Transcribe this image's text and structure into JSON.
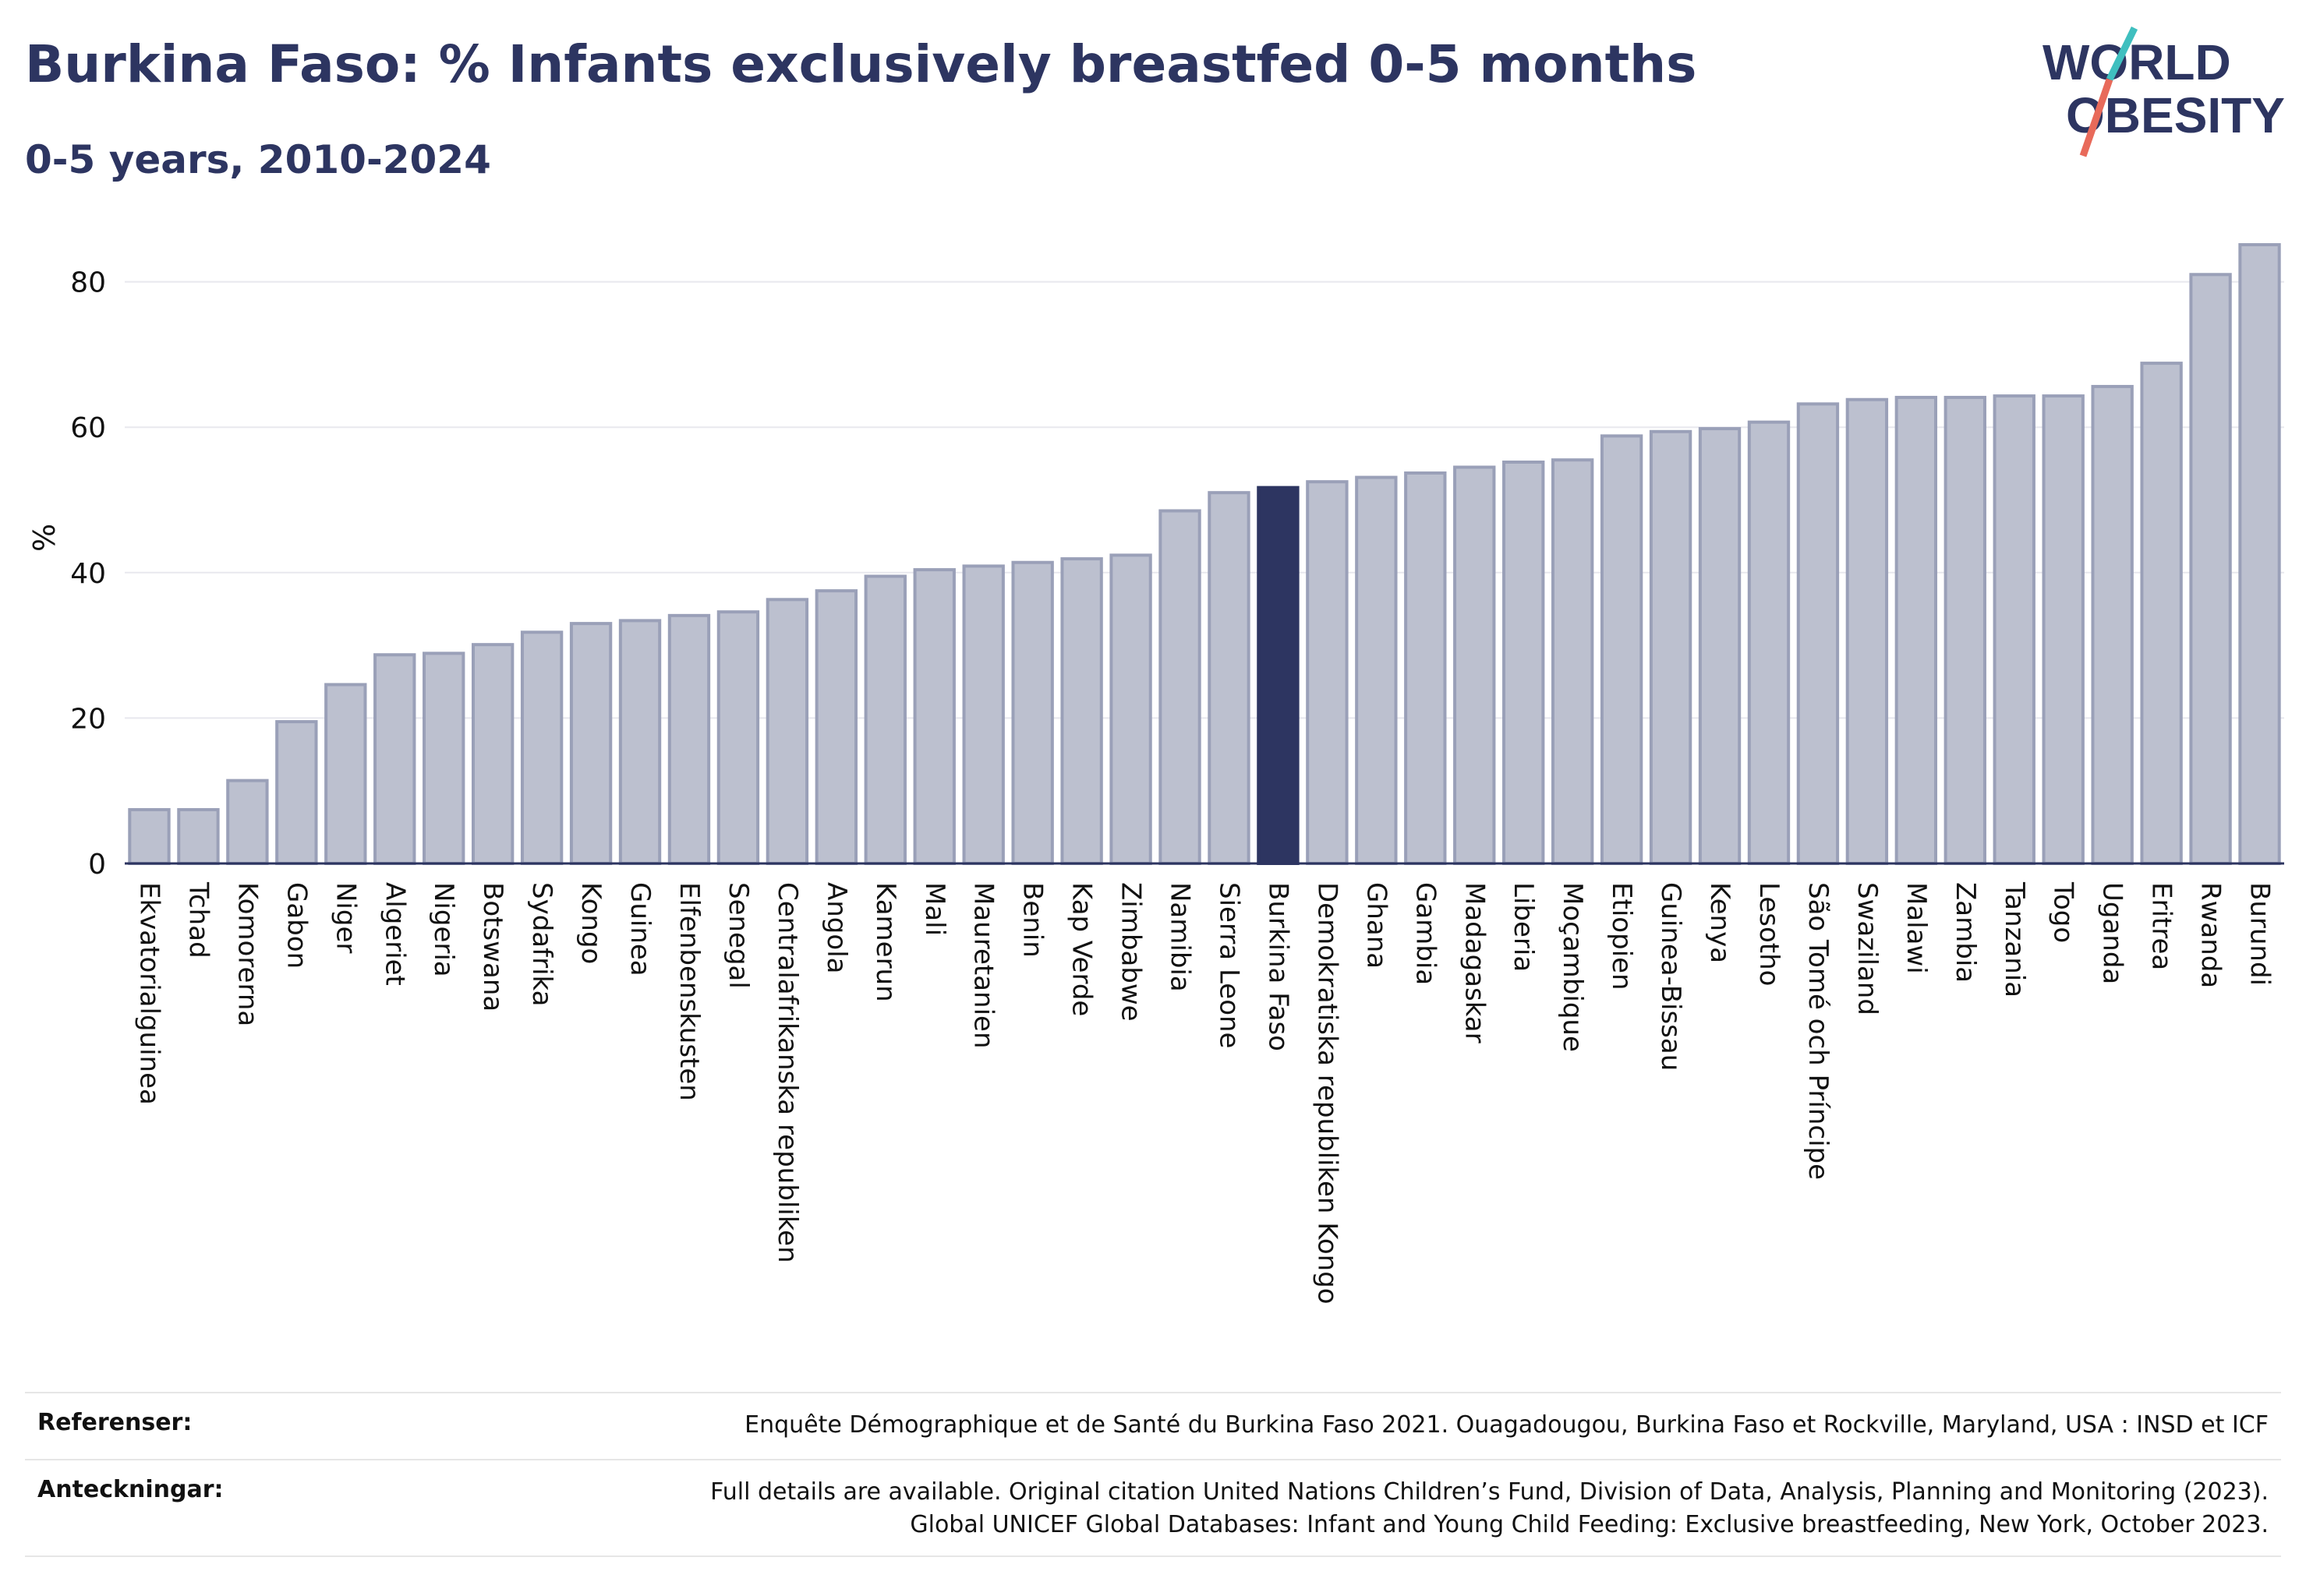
{
  "title": "Burkina Faso: % Infants exclusively breastfed 0-5 months",
  "subtitle": "0-5 years, 2010-2024",
  "logo": {
    "line1": "WORLD",
    "line2": "OBESITY"
  },
  "colors": {
    "bar": "#bcc0cf",
    "bar_edge": "#9aa0b8",
    "highlight": "#2d3561",
    "text": "#2d3561",
    "logo_teal": "#3fbfbf",
    "logo_coral": "#e86a5a"
  },
  "chart_data": {
    "type": "bar",
    "title": "Burkina Faso: % Infants exclusively breastfed 0-5 months",
    "subtitle": "0-5 years, 2010-2024",
    "xlabel": "",
    "ylabel": "%",
    "ylim": [
      0,
      90
    ],
    "yticks": [
      0,
      20,
      40,
      60,
      80
    ],
    "grid": true,
    "highlight": "Burkina Faso",
    "categories": [
      "Ekvatorialguinea",
      "Tchad",
      "Komorerna",
      "Gabon",
      "Niger",
      "Algeriet",
      "Nigeria",
      "Botswana",
      "Sydafrika",
      "Kongo",
      "Guinea",
      "Elfenbenskusten",
      "Senegal",
      "Centralafrikanska republiken",
      "Angola",
      "Kamerun",
      "Mali",
      "Mauretanien",
      "Benin",
      "Kap Verde",
      "Zimbabwe",
      "Namibia",
      "Sierra Leone",
      "Burkina Faso",
      "Demokratiska republiken Kongo",
      "Ghana",
      "Gambia",
      "Madagaskar",
      "Liberia",
      "Moçambique",
      "Etiopien",
      "Guinea-Bissau",
      "Kenya",
      "Lesotho",
      "São Tomé och Príncipe",
      "Swaziland",
      "Malawi",
      "Zambia",
      "Tanzania",
      "Togo",
      "Uganda",
      "Eritrea",
      "Rwanda",
      "Burundi"
    ],
    "values": [
      7.4,
      7.4,
      11.4,
      19.5,
      24.6,
      28.7,
      28.9,
      30.1,
      31.8,
      33.0,
      33.4,
      34.1,
      34.6,
      36.3,
      37.5,
      39.5,
      40.4,
      40.9,
      41.4,
      41.9,
      42.4,
      48.5,
      51.0,
      51.7,
      52.5,
      53.1,
      53.7,
      54.5,
      55.2,
      55.5,
      58.8,
      59.4,
      59.8,
      60.7,
      63.2,
      63.8,
      64.1,
      64.1,
      64.3,
      64.3,
      65.6,
      68.8,
      81.0,
      85.1
    ]
  },
  "footer": {
    "references_label": "Referenser:",
    "references_text": "Enquête Démographique et de Santé du Burkina Faso 2021. Ouagadougou, Burkina Faso et Rockville, Maryland, USA : INSD et ICF",
    "notes_label": "Anteckningar:",
    "notes_line1": "Full details are available. Original citation United Nations Children’s Fund, Division of Data, Analysis, Planning and Monitoring (2023).",
    "notes_line2": "Global UNICEF Global Databases: Infant and Young Child Feeding: Exclusive breastfeeding, New York, October 2023."
  }
}
